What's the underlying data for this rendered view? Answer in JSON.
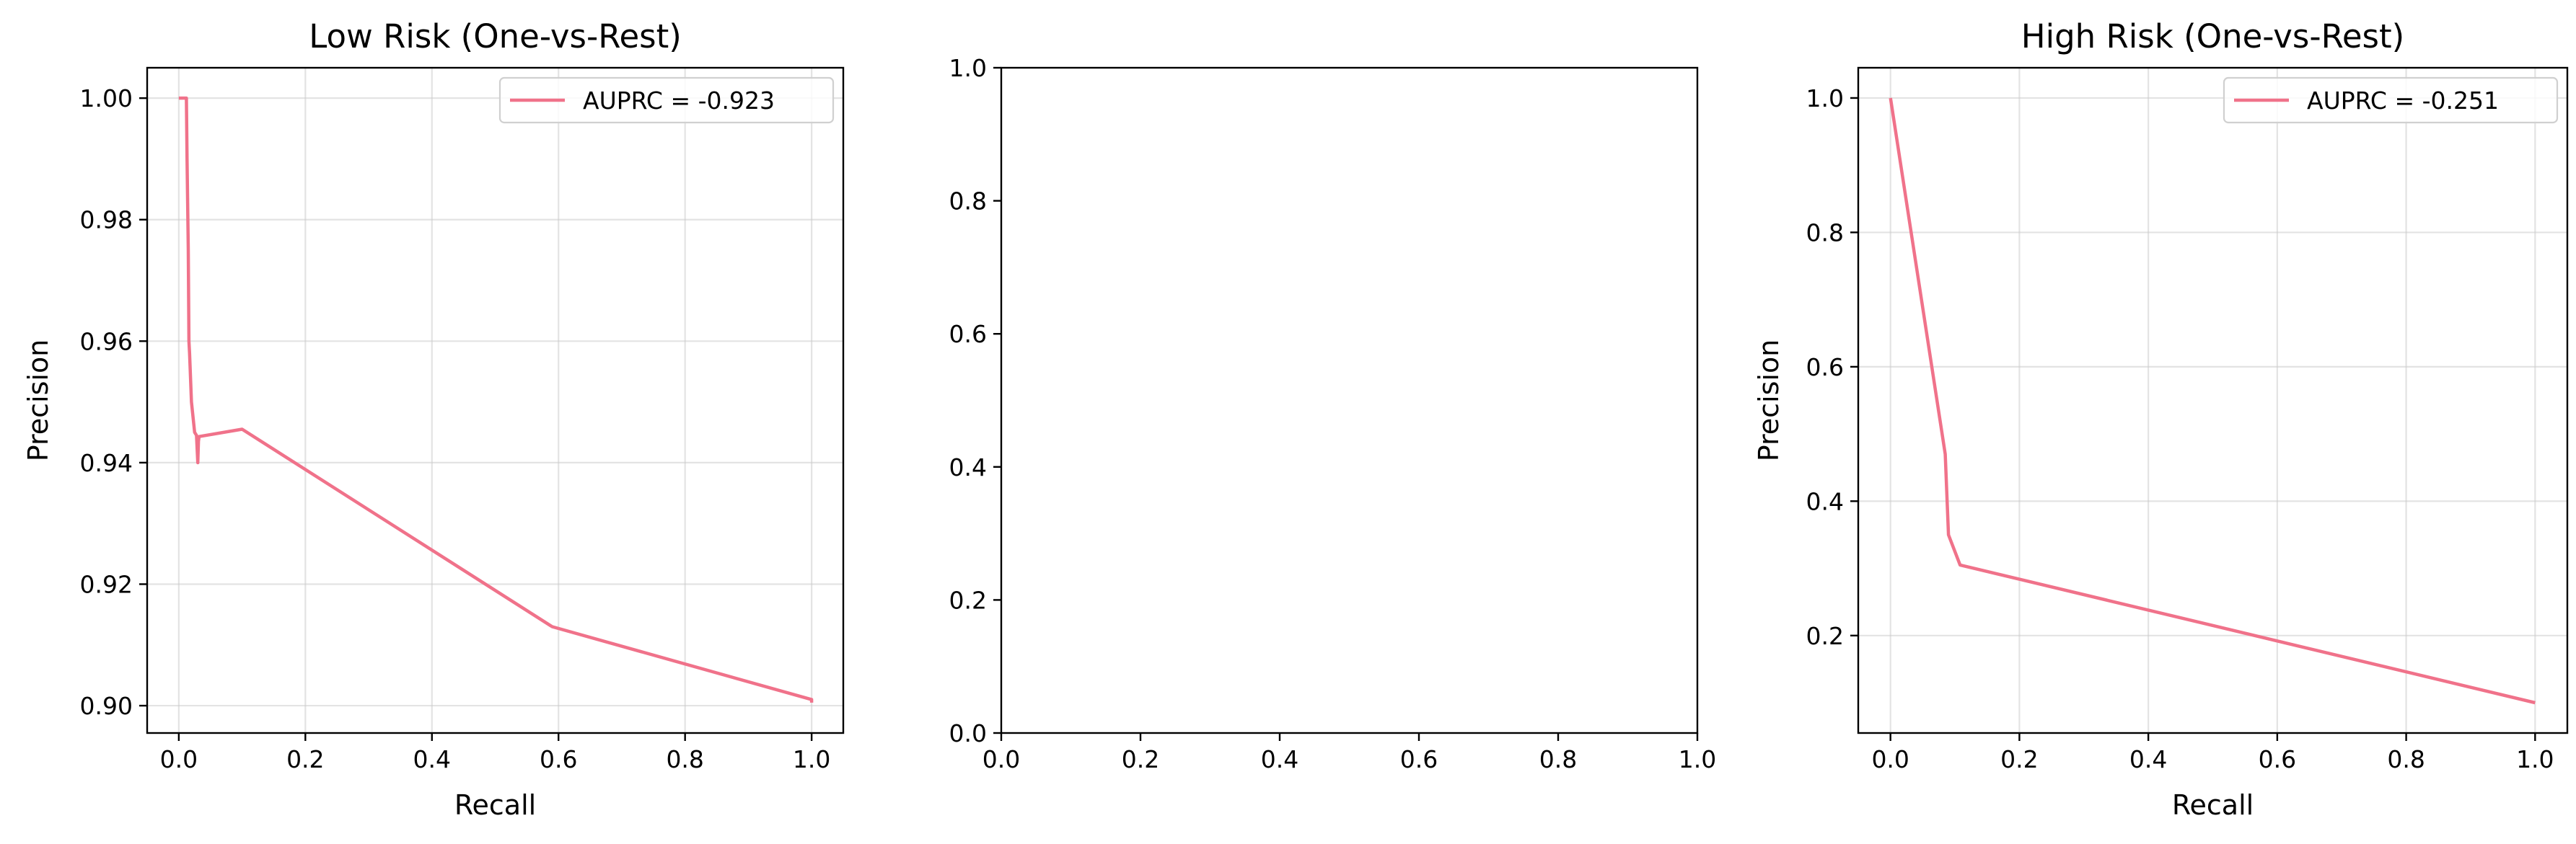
{
  "chart_data": [
    {
      "type": "line",
      "title": "Low Risk (One-vs-Rest)",
      "xlabel": "Recall",
      "ylabel": "Precision",
      "xlim": [
        -0.05,
        1.05
      ],
      "ylim": [
        0.8955,
        1.005
      ],
      "xticks": [
        0.0,
        0.2,
        0.4,
        0.6,
        0.8,
        1.0
      ],
      "xtick_labels": [
        "0.0",
        "0.2",
        "0.4",
        "0.6",
        "0.8",
        "1.0"
      ],
      "yticks": [
        0.9,
        0.92,
        0.94,
        0.96,
        0.98,
        1.0
      ],
      "ytick_labels": [
        "0.90",
        "0.92",
        "0.94",
        "0.96",
        "0.98",
        "1.00"
      ],
      "grid": true,
      "legend_position": "top-right",
      "series": [
        {
          "name": "AUPRC = -0.923",
          "color": "#f0728a",
          "x": [
            0.0,
            0.012,
            0.013,
            0.015,
            0.016,
            0.017,
            0.02,
            0.025,
            0.028,
            0.03,
            0.031,
            0.032,
            0.1,
            0.59,
            1.0,
            1.0
          ],
          "y": [
            1.0,
            1.0,
            0.99,
            0.975,
            0.96,
            0.958,
            0.95,
            0.945,
            0.9445,
            0.94,
            0.9435,
            0.9443,
            0.9455,
            0.913,
            0.901,
            0.9005
          ]
        }
      ]
    },
    {
      "type": "line",
      "title": "",
      "xlabel": "",
      "ylabel": "",
      "xlim": [
        0,
        1
      ],
      "ylim": [
        0,
        1
      ],
      "xticks": [
        0.0,
        0.2,
        0.4,
        0.6,
        0.8,
        1.0
      ],
      "xtick_labels": [
        "0.0",
        "0.2",
        "0.4",
        "0.6",
        "0.8",
        "1.0"
      ],
      "yticks": [
        0.0,
        0.2,
        0.4,
        0.6,
        0.8,
        1.0
      ],
      "ytick_labels": [
        "0.0",
        "0.2",
        "0.4",
        "0.6",
        "0.8",
        "1.0"
      ],
      "grid": false,
      "series": []
    },
    {
      "type": "line",
      "title": "High Risk (One-vs-Rest)",
      "xlabel": "Recall",
      "ylabel": "Precision",
      "xlim": [
        -0.05,
        1.05
      ],
      "ylim": [
        0.055,
        1.045
      ],
      "xticks": [
        0.0,
        0.2,
        0.4,
        0.6,
        0.8,
        1.0
      ],
      "xtick_labels": [
        "0.0",
        "0.2",
        "0.4",
        "0.6",
        "0.8",
        "1.0"
      ],
      "yticks": [
        0.2,
        0.4,
        0.6,
        0.8,
        1.0
      ],
      "ytick_labels": [
        "0.2",
        "0.4",
        "0.6",
        "0.8",
        "1.0"
      ],
      "grid": true,
      "legend_position": "top-right",
      "series": [
        {
          "name": "AUPRC = -0.251",
          "color": "#f0728a",
          "x": [
            0.0,
            0.085,
            0.09,
            0.108,
            1.0
          ],
          "y": [
            1.0,
            0.47,
            0.35,
            0.305,
            0.1
          ]
        }
      ]
    }
  ]
}
